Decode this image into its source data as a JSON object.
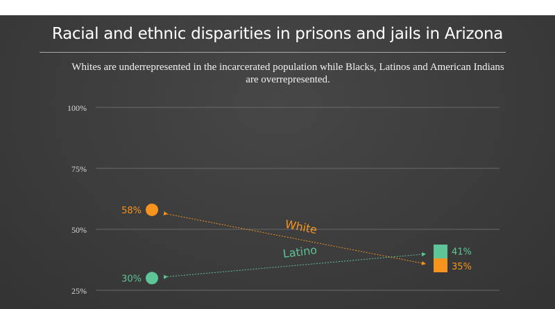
{
  "title": "Racial and ethnic disparities in prisons and jails in Arizona",
  "subtitle": "Whites are underrepresented in the incarcerated population while Blacks, Latinos and American Indians are overrepresented.",
  "chart_data": {
    "type": "slope",
    "ylim": [
      25,
      100
    ],
    "yticks": [
      100,
      75,
      50,
      25
    ],
    "ytick_labels": [
      "100%",
      "75%",
      "50%",
      "25%"
    ],
    "grid": true,
    "series": [
      {
        "name": "White",
        "left": 58,
        "right": 35,
        "left_label": "58%",
        "right_label": "35%",
        "color": "#f7941d"
      },
      {
        "name": "Latino",
        "left": 30,
        "right": 41,
        "left_label": "30%",
        "right_label": "41%",
        "color": "#5dc597"
      }
    ]
  }
}
